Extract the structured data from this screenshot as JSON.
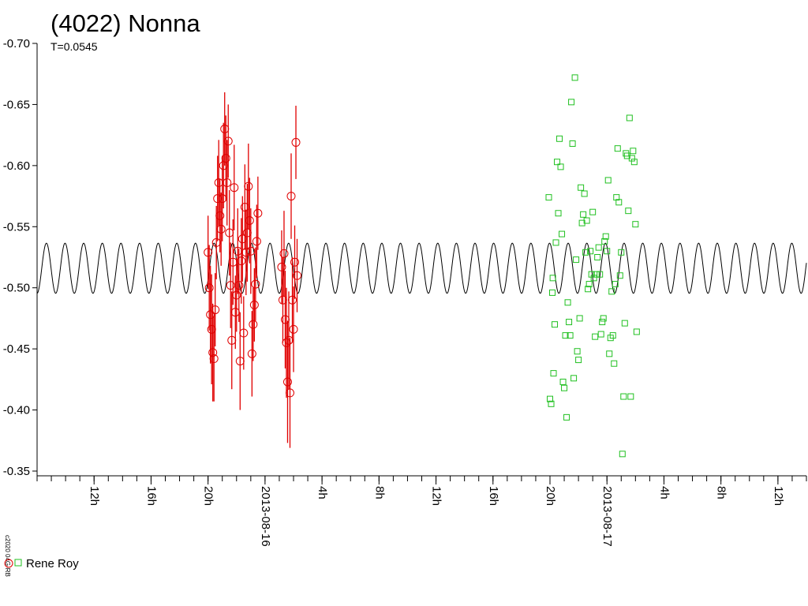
{
  "chart_data": {
    "type": "scatter",
    "title": "(4022) Nonna",
    "subtitle": "T=0.0545",
    "credit": "c2020 04G-RB",
    "y_axis": {
      "reversed": true,
      "ylim": [
        -0.35,
        -0.7
      ],
      "ticks": [
        -0.7,
        -0.65,
        -0.6,
        -0.55,
        -0.5,
        -0.45,
        -0.4,
        -0.35
      ],
      "tick_labels": [
        "-0.70",
        "-0.65",
        "-0.60",
        "-0.55",
        "-0.50",
        "-0.45",
        "-0.40",
        "-0.35"
      ]
    },
    "x_axis": {
      "start": "2013-08-15T08:00",
      "end": "2013-08-17T14:00",
      "labels": [
        {
          "time": "2013-08-15T12:00",
          "text": "12h"
        },
        {
          "time": "2013-08-15T16:00",
          "text": "16h"
        },
        {
          "time": "2013-08-15T20:00",
          "text": "20h"
        },
        {
          "time": "2013-08-16T00:00",
          "text": "2013-08-16"
        },
        {
          "time": "2013-08-16T04:00",
          "text": "4h"
        },
        {
          "time": "2013-08-16T08:00",
          "text": "8h"
        },
        {
          "time": "2013-08-16T12:00",
          "text": "12h"
        },
        {
          "time": "2013-08-16T16:00",
          "text": "16h"
        },
        {
          "time": "2013-08-16T20:00",
          "text": "20h"
        },
        {
          "time": "2013-08-17T00:00",
          "text": "2013-08-17"
        },
        {
          "time": "2013-08-17T04:00",
          "text": "4h"
        },
        {
          "time": "2013-08-17T08:00",
          "text": "8h"
        },
        {
          "time": "2013-08-17T12:00",
          "text": "12h"
        }
      ],
      "minor_tick_hours": 1
    },
    "model_curve": {
      "period_days": 0.0545,
      "mean": -0.516,
      "amplitude": 0.0205,
      "color": "#000000"
    },
    "legend": {
      "text": "Rene Roy"
    },
    "series": [
      {
        "color": "#e00000",
        "marker": "circle",
        "error_bars": true,
        "points": [
          [
            "2013-08-15T20:00",
            -0.529,
            0.03
          ],
          [
            "2013-08-15T20:05",
            -0.5,
            0.035
          ],
          [
            "2013-08-15T20:10",
            -0.478,
            0.04
          ],
          [
            "2013-08-15T20:15",
            -0.466,
            0.045
          ],
          [
            "2013-08-15T20:20",
            -0.447,
            0.04
          ],
          [
            "2013-08-15T20:25",
            -0.442,
            0.035
          ],
          [
            "2013-08-15T20:30",
            -0.482,
            0.03
          ],
          [
            "2013-08-15T20:35",
            -0.537,
            0.03
          ],
          [
            "2013-08-15T20:40",
            -0.573,
            0.035
          ],
          [
            "2013-08-15T20:45",
            -0.586,
            0.035
          ],
          [
            "2013-08-15T20:50",
            -0.559,
            0.03
          ],
          [
            "2013-08-15T20:55",
            -0.548,
            0.03
          ],
          [
            "2013-08-15T21:00",
            -0.573,
            0.035
          ],
          [
            "2013-08-15T21:05",
            -0.6,
            0.035
          ],
          [
            "2013-08-15T21:10",
            -0.63,
            0.03
          ],
          [
            "2013-08-15T21:15",
            -0.606,
            0.035
          ],
          [
            "2013-08-15T21:20",
            -0.586,
            0.035
          ],
          [
            "2013-08-15T21:25",
            -0.62,
            0.03
          ],
          [
            "2013-08-15T21:30",
            -0.545,
            0.035
          ],
          [
            "2013-08-15T21:35",
            -0.502,
            0.035
          ],
          [
            "2013-08-15T21:40",
            -0.457,
            0.04
          ],
          [
            "2013-08-15T21:45",
            -0.521,
            0.035
          ],
          [
            "2013-08-15T21:50",
            -0.582,
            0.035
          ],
          [
            "2013-08-15T21:55",
            -0.48,
            0.03
          ],
          [
            "2013-08-15T22:00",
            -0.494,
            0.03
          ],
          [
            "2013-08-15T22:05",
            -0.53,
            0.035
          ],
          [
            "2013-08-15T22:10",
            -0.502,
            0.03
          ],
          [
            "2013-08-15T22:15",
            -0.44,
            0.04
          ],
          [
            "2013-08-15T22:20",
            -0.522,
            0.035
          ],
          [
            "2013-08-15T22:25",
            -0.54,
            0.035
          ],
          [
            "2013-08-15T22:30",
            -0.463,
            0.03
          ],
          [
            "2013-08-15T22:35",
            -0.566,
            0.035
          ],
          [
            "2013-08-15T22:40",
            -0.529,
            0.035
          ],
          [
            "2013-08-15T22:45",
            -0.545,
            0.04
          ],
          [
            "2013-08-15T22:50",
            -0.583,
            0.035
          ],
          [
            "2013-08-15T22:55",
            -0.555,
            0.035
          ],
          [
            "2013-08-15T23:00",
            -0.53,
            0.035
          ],
          [
            "2013-08-15T23:05",
            -0.446,
            0.035
          ],
          [
            "2013-08-15T23:10",
            -0.47,
            0.03
          ],
          [
            "2013-08-15T23:15",
            -0.486,
            0.03
          ],
          [
            "2013-08-15T23:20",
            -0.503,
            0.03
          ],
          [
            "2013-08-15T23:25",
            -0.538,
            0.03
          ],
          [
            "2013-08-15T23:30",
            -0.561,
            0.03
          ],
          [
            "2013-08-16T01:10",
            -0.517,
            0.03
          ],
          [
            "2013-08-16T01:15",
            -0.49,
            0.035
          ],
          [
            "2013-08-16T01:20",
            -0.528,
            0.035
          ],
          [
            "2013-08-16T01:25",
            -0.474,
            0.04
          ],
          [
            "2013-08-16T01:30",
            -0.455,
            0.045
          ],
          [
            "2013-08-16T01:35",
            -0.423,
            0.05
          ],
          [
            "2013-08-16T01:40",
            -0.457,
            0.04
          ],
          [
            "2013-08-16T01:45",
            -0.414,
            0.045
          ],
          [
            "2013-08-16T01:50",
            -0.575,
            0.035
          ],
          [
            "2013-08-16T01:55",
            -0.49,
            0.035
          ],
          [
            "2013-08-16T02:00",
            -0.466,
            0.035
          ],
          [
            "2013-08-16T02:05",
            -0.521,
            0.03
          ],
          [
            "2013-08-16T02:10",
            -0.619,
            0.03
          ],
          [
            "2013-08-16T02:15",
            -0.51,
            0.03
          ]
        ]
      },
      {
        "color": "#20c020",
        "marker": "square",
        "error_bars": false,
        "points": [
          [
            "2013-08-16T19:55",
            -0.574
          ],
          [
            "2013-08-16T20:00",
            -0.409
          ],
          [
            "2013-08-16T20:05",
            -0.405
          ],
          [
            "2013-08-16T20:10",
            -0.496
          ],
          [
            "2013-08-16T20:12",
            -0.508
          ],
          [
            "2013-08-16T20:15",
            -0.43
          ],
          [
            "2013-08-16T20:20",
            -0.47
          ],
          [
            "2013-08-16T20:25",
            -0.537
          ],
          [
            "2013-08-16T20:30",
            -0.603
          ],
          [
            "2013-08-16T20:35",
            -0.561
          ],
          [
            "2013-08-16T20:40",
            -0.622
          ],
          [
            "2013-08-16T20:45",
            -0.599
          ],
          [
            "2013-08-16T20:50",
            -0.544
          ],
          [
            "2013-08-16T20:55",
            -0.423
          ],
          [
            "2013-08-16T21:00",
            -0.418
          ],
          [
            "2013-08-16T21:05",
            -0.461
          ],
          [
            "2013-08-16T21:10",
            -0.394
          ],
          [
            "2013-08-16T21:15",
            -0.488
          ],
          [
            "2013-08-16T21:20",
            -0.472
          ],
          [
            "2013-08-16T21:25",
            -0.461
          ],
          [
            "2013-08-16T21:30",
            -0.652
          ],
          [
            "2013-08-16T21:35",
            -0.618
          ],
          [
            "2013-08-16T21:40",
            -0.426
          ],
          [
            "2013-08-16T21:45",
            -0.672
          ],
          [
            "2013-08-16T21:50",
            -0.523
          ],
          [
            "2013-08-16T21:55",
            -0.448
          ],
          [
            "2013-08-16T22:00",
            -0.441
          ],
          [
            "2013-08-16T22:05",
            -0.475
          ],
          [
            "2013-08-16T22:10",
            -0.582
          ],
          [
            "2013-08-16T22:15",
            -0.553
          ],
          [
            "2013-08-16T22:20",
            -0.56
          ],
          [
            "2013-08-16T22:25",
            -0.577
          ],
          [
            "2013-08-16T22:30",
            -0.529
          ],
          [
            "2013-08-16T22:35",
            -0.555
          ],
          [
            "2013-08-16T22:40",
            -0.499
          ],
          [
            "2013-08-16T22:45",
            -0.503
          ],
          [
            "2013-08-16T22:50",
            -0.53
          ],
          [
            "2013-08-16T22:55",
            -0.511
          ],
          [
            "2013-08-16T23:00",
            -0.562
          ],
          [
            "2013-08-16T23:05",
            -0.508
          ],
          [
            "2013-08-16T23:10",
            -0.46
          ],
          [
            "2013-08-16T23:15",
            -0.511
          ],
          [
            "2013-08-16T23:20",
            -0.525
          ],
          [
            "2013-08-16T23:25",
            -0.533
          ],
          [
            "2013-08-16T23:30",
            -0.511
          ],
          [
            "2013-08-16T23:35",
            -0.462
          ],
          [
            "2013-08-16T23:40",
            -0.472
          ],
          [
            "2013-08-16T23:45",
            -0.475
          ],
          [
            "2013-08-16T23:50",
            -0.538
          ],
          [
            "2013-08-16T23:55",
            -0.542
          ],
          [
            "2013-08-17T00:00",
            -0.53
          ],
          [
            "2013-08-17T00:05",
            -0.588
          ],
          [
            "2013-08-17T00:10",
            -0.446
          ],
          [
            "2013-08-17T00:15",
            -0.459
          ],
          [
            "2013-08-17T00:20",
            -0.497
          ],
          [
            "2013-08-17T00:25",
            -0.461
          ],
          [
            "2013-08-17T00:30",
            -0.438
          ],
          [
            "2013-08-17T00:35",
            -0.503
          ],
          [
            "2013-08-17T00:40",
            -0.574
          ],
          [
            "2013-08-17T00:45",
            -0.614
          ],
          [
            "2013-08-17T00:50",
            -0.57
          ],
          [
            "2013-08-17T00:55",
            -0.51
          ],
          [
            "2013-08-17T01:00",
            -0.529
          ],
          [
            "2013-08-17T01:05",
            -0.364
          ],
          [
            "2013-08-17T01:10",
            -0.411
          ],
          [
            "2013-08-17T01:15",
            -0.471
          ],
          [
            "2013-08-17T01:20",
            -0.61
          ],
          [
            "2013-08-17T01:25",
            -0.608
          ],
          [
            "2013-08-17T01:30",
            -0.563
          ],
          [
            "2013-08-17T01:35",
            -0.639
          ],
          [
            "2013-08-17T01:40",
            -0.411
          ],
          [
            "2013-08-17T01:45",
            -0.606
          ],
          [
            "2013-08-17T01:50",
            -0.612
          ],
          [
            "2013-08-17T01:55",
            -0.603
          ],
          [
            "2013-08-17T02:00",
            -0.552
          ],
          [
            "2013-08-17T02:05",
            -0.464
          ]
        ]
      }
    ]
  }
}
